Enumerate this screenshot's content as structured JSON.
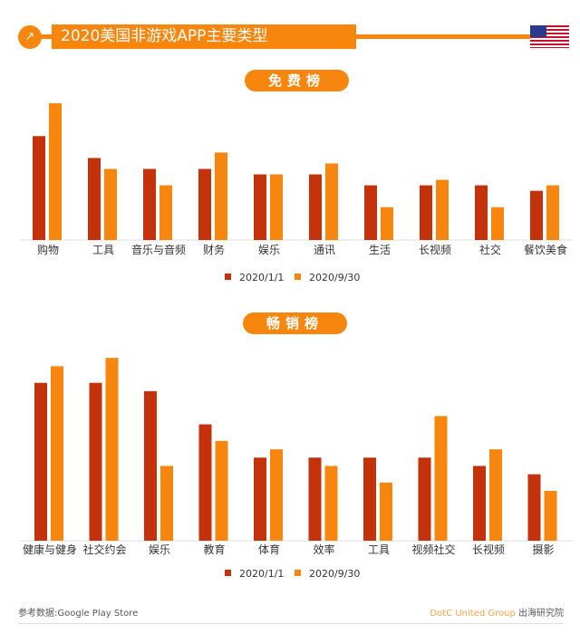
{
  "header": {
    "title": "2020美国非游戏APP主要类型",
    "icon": "external-link-icon",
    "flag": "us-flag-icon"
  },
  "colors": {
    "series1": "#c4320c",
    "series2": "#f7860f",
    "accent": "#f7860f"
  },
  "chart_data": [
    {
      "type": "bar",
      "title": "免费榜",
      "categories": [
        "购物",
        "工具",
        "音乐与音频",
        "财务",
        "娱乐",
        "通讯",
        "生活",
        "长视频",
        "社交",
        "餐饮美食"
      ],
      "series": [
        {
          "name": "2020/1/1",
          "values": [
            19,
            15,
            13,
            13,
            12,
            12,
            10,
            10,
            10,
            9
          ]
        },
        {
          "name": "2020/9/30",
          "values": [
            25,
            13,
            10,
            16,
            12,
            14,
            6,
            11,
            6,
            10
          ]
        }
      ],
      "legend": "bottom",
      "grid": false,
      "ylim": [
        0,
        26
      ]
    },
    {
      "type": "bar",
      "title": "畅销榜",
      "categories": [
        "健康与健身",
        "社交约会",
        "娱乐",
        "教育",
        "体育",
        "效率",
        "工具",
        "视频社交",
        "长视频",
        "摄影"
      ],
      "series": [
        {
          "name": "2020/1/1",
          "values": [
            19,
            19,
            18,
            14,
            10,
            10,
            10,
            10,
            9,
            8
          ]
        },
        {
          "name": "2020/9/30",
          "values": [
            21,
            22,
            9,
            12,
            11,
            9,
            7,
            15,
            11,
            6
          ]
        }
      ],
      "legend": "bottom",
      "grid": false,
      "ylim": [
        0,
        23
      ]
    }
  ],
  "footer": {
    "source": "参考数据:Google Play Store",
    "brand": "DotC United Group",
    "brand_suffix": " 出海研究院"
  }
}
